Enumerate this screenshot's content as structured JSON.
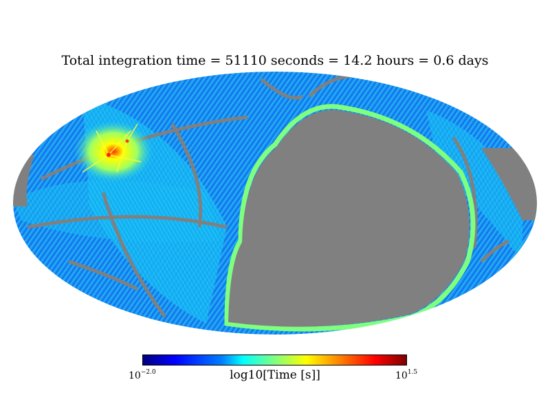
{
  "chart_data": {
    "type": "heatmap",
    "projection": "mollweide",
    "title": "Total integration time = 51110 seconds = 14.2 hours = 0.6 days",
    "colorbar": {
      "label": "log10[Time [s]]",
      "min_label_base": "10",
      "min_label_exp": "−2.0",
      "max_label_base": "10",
      "max_label_exp": "1.5",
      "range": [
        -2.0,
        1.5
      ],
      "colormap": "jet"
    },
    "mask_color": "#808080",
    "total_seconds": 51110,
    "total_hours": 14.2,
    "total_days": 0.6
  },
  "colors": {
    "background_sky": "#0a9bf0",
    "mask": "#808080",
    "hotspot": "#ffff00",
    "edge": "#7fff7f"
  }
}
